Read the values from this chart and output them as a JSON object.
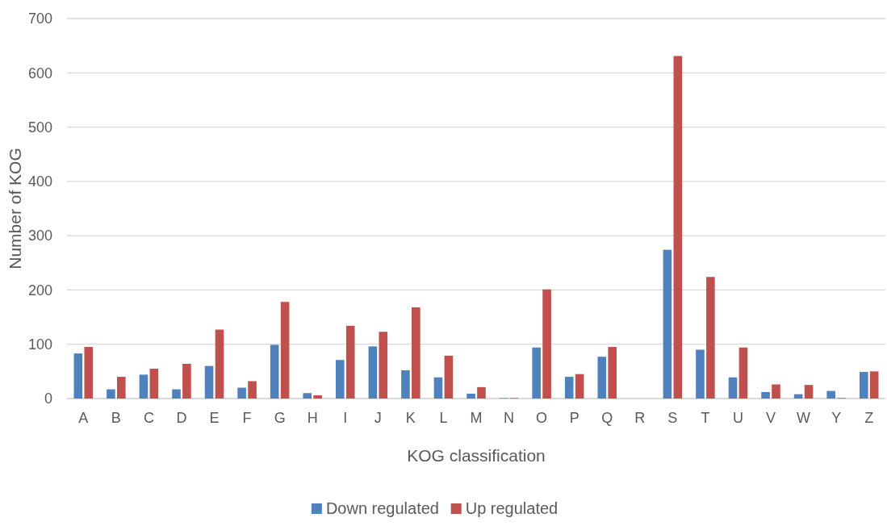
{
  "chart_data": {
    "type": "bar",
    "xlabel": "KOG classification",
    "ylabel": "Number of KOG",
    "categories": [
      "A",
      "B",
      "C",
      "D",
      "E",
      "F",
      "G",
      "H",
      "I",
      "J",
      "K",
      "L",
      "M",
      "N",
      "O",
      "P",
      "Q",
      "R",
      "S",
      "T",
      "U",
      "V",
      "W",
      "Y",
      "Z"
    ],
    "series": [
      {
        "name": "Down regulated",
        "color": "#4f81bd",
        "values": [
          83,
          17,
          44,
          17,
          60,
          20,
          99,
          10,
          71,
          96,
          52,
          39,
          9,
          1,
          94,
          40,
          77,
          0,
          274,
          90,
          39,
          12,
          8,
          14,
          49
        ]
      },
      {
        "name": "Up regulated",
        "color": "#c0504d",
        "values": [
          95,
          40,
          55,
          64,
          127,
          32,
          178,
          6,
          134,
          123,
          168,
          79,
          21,
          1,
          201,
          45,
          95,
          0,
          631,
          224,
          94,
          26,
          25,
          1,
          50
        ]
      }
    ],
    "ylim": [
      0,
      700
    ],
    "yticks": [
      0,
      100,
      200,
      300,
      400,
      500,
      600,
      700
    ],
    "grid": "y",
    "legend": "bottom"
  }
}
